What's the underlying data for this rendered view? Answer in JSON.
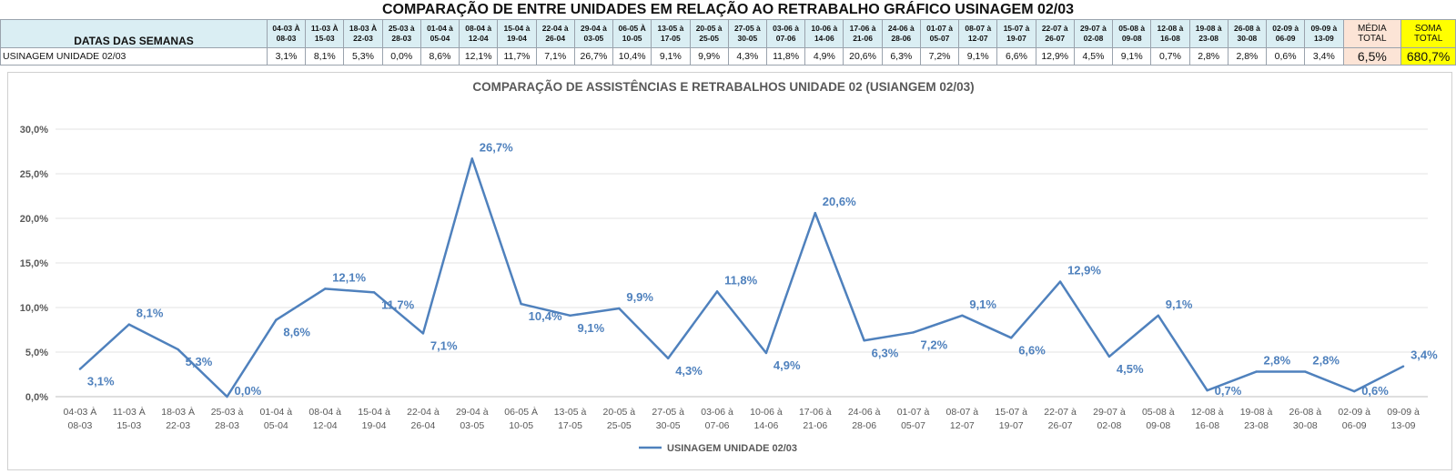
{
  "header": {
    "title": "COMPARAÇÃO DE ENTRE UNIDADES EM RELAÇÃO AO RETRABALHO GRÁFICO USINAGEM 02/03",
    "row_header_label": "DATAS DAS SEMANAS",
    "row_label": "USINAGEM UNIDADE 02/03",
    "media_label_1": "MÉDIA",
    "media_label_2": "TOTAL",
    "soma_label_1": "SOMA",
    "soma_label_2": "TOTAL",
    "media_value": "6,5%",
    "soma_value": "680,7%"
  },
  "weeks": [
    {
      "l1": "04-03 À",
      "l2": "08-03"
    },
    {
      "l1": "11-03 À",
      "l2": "15-03"
    },
    {
      "l1": "18-03 À",
      "l2": "22-03"
    },
    {
      "l1": "25-03 à",
      "l2": "28-03"
    },
    {
      "l1": "01-04 à",
      "l2": "05-04"
    },
    {
      "l1": "08-04 à",
      "l2": "12-04"
    },
    {
      "l1": "15-04 à",
      "l2": "19-04"
    },
    {
      "l1": "22-04 à",
      "l2": "26-04"
    },
    {
      "l1": "29-04 à",
      "l2": "03-05"
    },
    {
      "l1": "06-05 À",
      "l2": "10-05"
    },
    {
      "l1": "13-05 à",
      "l2": "17-05"
    },
    {
      "l1": "20-05 à",
      "l2": "25-05"
    },
    {
      "l1": "27-05 à",
      "l2": "30-05"
    },
    {
      "l1": "03-06 à",
      "l2": "07-06"
    },
    {
      "l1": "10-06 à",
      "l2": "14-06"
    },
    {
      "l1": "17-06 à",
      "l2": "21-06"
    },
    {
      "l1": "24-06 à",
      "l2": "28-06"
    },
    {
      "l1": "01-07 à",
      "l2": "05-07"
    },
    {
      "l1": "08-07 à",
      "l2": "12-07"
    },
    {
      "l1": "15-07 à",
      "l2": "19-07"
    },
    {
      "l1": "22-07 à",
      "l2": "26-07"
    },
    {
      "l1": "29-07 à",
      "l2": "02-08"
    },
    {
      "l1": "05-08 à",
      "l2": "09-08"
    },
    {
      "l1": "12-08 à",
      "l2": "16-08"
    },
    {
      "l1": "19-08 à",
      "l2": "23-08"
    },
    {
      "l1": "26-08 à",
      "l2": "30-08"
    },
    {
      "l1": "02-09 à",
      "l2": "06-09"
    },
    {
      "l1": "09-09 à",
      "l2": "13-09"
    }
  ],
  "table_values": [
    "3,1%",
    "8,1%",
    "5,3%",
    "0,0%",
    "8,6%",
    "12,1%",
    "11,7%",
    "7,1%",
    "26,7%",
    "10,4%",
    "9,1%",
    "9,9%",
    "4,3%",
    "11,8%",
    "4,9%",
    "20,6%",
    "6,3%",
    "7,2%",
    "9,1%",
    "6,6%",
    "12,9%",
    "4,5%",
    "9,1%",
    "0,7%",
    "2,8%",
    "2,8%",
    "0,6%",
    "3,4%"
  ],
  "chart_data": {
    "type": "line",
    "title": "COMPARAÇÃO DE ASSISTÊNCIAS E RETRABALHOS UNIDADE 02  (USIANGEM 02/03)",
    "categories": [
      [
        "04-03 À",
        "08-03"
      ],
      [
        "11-03 À",
        "15-03"
      ],
      [
        "18-03 À",
        "22-03"
      ],
      [
        "25-03 à",
        "28-03"
      ],
      [
        "01-04 à",
        "05-04"
      ],
      [
        "08-04 à",
        "12-04"
      ],
      [
        "15-04 à",
        "19-04"
      ],
      [
        "22-04 à",
        "26-04"
      ],
      [
        "29-04 à",
        "03-05"
      ],
      [
        "06-05 À",
        "10-05"
      ],
      [
        "13-05 à",
        "17-05"
      ],
      [
        "20-05 à",
        "25-05"
      ],
      [
        "27-05 à",
        "30-05"
      ],
      [
        "03-06 à",
        "07-06"
      ],
      [
        "10-06 à",
        "14-06"
      ],
      [
        "17-06 à",
        "21-06"
      ],
      [
        "24-06 à",
        "28-06"
      ],
      [
        "01-07 à",
        "05-07"
      ],
      [
        "08-07 à",
        "12-07"
      ],
      [
        "15-07 à",
        "19-07"
      ],
      [
        "22-07 à",
        "26-07"
      ],
      [
        "29-07 à",
        "02-08"
      ],
      [
        "05-08 à",
        "09-08"
      ],
      [
        "12-08 à",
        "16-08"
      ],
      [
        "19-08 à",
        "23-08"
      ],
      [
        "26-08 à",
        "30-08"
      ],
      [
        "02-09 à",
        "06-09"
      ],
      [
        "09-09 à",
        "13-09"
      ]
    ],
    "series": [
      {
        "name": "USINAGEM UNIDADE 02/03",
        "color": "#4f81bd",
        "values": [
          3.1,
          8.1,
          5.3,
          0.0,
          8.6,
          12.1,
          11.7,
          7.1,
          26.7,
          10.4,
          9.1,
          9.9,
          4.3,
          11.8,
          4.9,
          20.6,
          6.3,
          7.2,
          9.1,
          6.6,
          12.9,
          4.5,
          9.1,
          0.7,
          2.8,
          2.8,
          0.6,
          3.4
        ],
        "labels": [
          "3,1%",
          "8,1%",
          "5,3%",
          "0,0%",
          "8,6%",
          "12,1%",
          "11,7%",
          "7,1%",
          "26,7%",
          "10,4%",
          "9,1%",
          "9,9%",
          "4,3%",
          "11,8%",
          "4,9%",
          "20,6%",
          "6,3%",
          "7,2%",
          "9,1%",
          "6,6%",
          "12,9%",
          "4,5%",
          "9,1%",
          "0,7%",
          "2,8%",
          "2,8%",
          "0,6%",
          "3,4%"
        ]
      }
    ],
    "ylim": [
      0,
      30
    ],
    "yticks": [
      "0,0%",
      "5,0%",
      "10,0%",
      "15,0%",
      "20,0%",
      "25,0%",
      "30,0%"
    ],
    "grid": true,
    "legend_position": "bottom"
  }
}
